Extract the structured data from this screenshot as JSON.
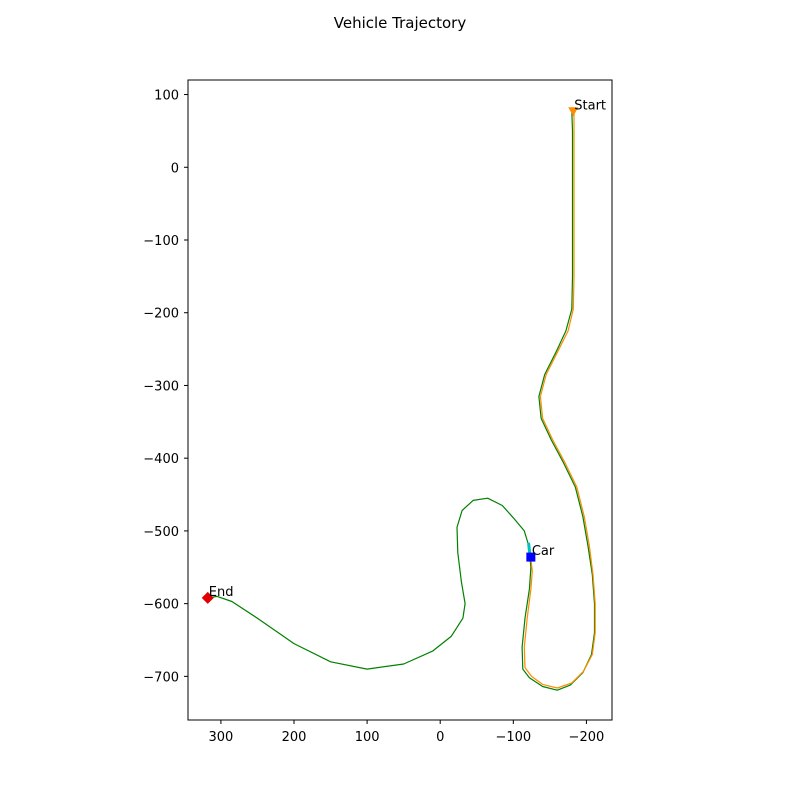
{
  "chart_data": {
    "type": "line",
    "title": "Vehicle Trajectory",
    "xlabel": "",
    "ylabel": "",
    "xlim": [
      345,
      -235
    ],
    "ylim": [
      -760,
      120
    ],
    "x_inverted": true,
    "grid": false,
    "xticks": [
      300,
      200,
      100,
      0,
      -100,
      -200
    ],
    "xtick_labels": [
      "300",
      "200",
      "100",
      "0",
      "−100",
      "−200"
    ],
    "yticks": [
      100,
      0,
      -100,
      -200,
      -300,
      -400,
      -500,
      -600,
      -700
    ],
    "ytick_labels": [
      "100",
      "0",
      "−100",
      "−200",
      "−300",
      "−400",
      "−500",
      "−600",
      "−700"
    ],
    "series": [
      {
        "color": "#008000",
        "points": [
          [
            -180,
            78
          ],
          [
            -181,
            50
          ],
          [
            -181,
            0
          ],
          [
            -181,
            -50
          ],
          [
            -181,
            -100
          ],
          [
            -181,
            -150
          ],
          [
            -180,
            -195
          ],
          [
            -172,
            -225
          ],
          [
            -158,
            -255
          ],
          [
            -143,
            -285
          ],
          [
            -135,
            -315
          ],
          [
            -138,
            -345
          ],
          [
            -152,
            -375
          ],
          [
            -168,
            -405
          ],
          [
            -185,
            -440
          ],
          [
            -195,
            -480
          ],
          [
            -202,
            -520
          ],
          [
            -208,
            -560
          ],
          [
            -211,
            -600
          ],
          [
            -211,
            -640
          ],
          [
            -207,
            -670
          ],
          [
            -195,
            -695
          ],
          [
            -178,
            -712
          ],
          [
            -160,
            -719
          ],
          [
            -140,
            -714
          ],
          [
            -122,
            -702
          ],
          [
            -113,
            -690
          ],
          [
            -112,
            -660
          ],
          [
            -116,
            -620
          ],
          [
            -122,
            -580
          ],
          [
            -124,
            -550
          ],
          [
            -121,
            -520
          ],
          [
            -115,
            -500
          ],
          [
            -100,
            -482
          ],
          [
            -85,
            -465
          ],
          [
            -65,
            -455
          ],
          [
            -45,
            -458
          ],
          [
            -30,
            -472
          ],
          [
            -23,
            -495
          ],
          [
            -24,
            -530
          ],
          [
            -29,
            -570
          ],
          [
            -34,
            -600
          ],
          [
            -31,
            -620
          ],
          [
            -15,
            -645
          ],
          [
            10,
            -665
          ],
          [
            50,
            -683
          ],
          [
            100,
            -690
          ],
          [
            150,
            -680
          ],
          [
            200,
            -655
          ],
          [
            250,
            -620
          ],
          [
            285,
            -597
          ],
          [
            305,
            -590
          ],
          [
            318,
            -592
          ]
        ]
      },
      {
        "color": "#ff8c00",
        "points": [
          [
            -183,
            78
          ],
          [
            -183,
            50
          ],
          [
            -183,
            0
          ],
          [
            -183,
            -50
          ],
          [
            -183,
            -100
          ],
          [
            -183,
            -150
          ],
          [
            -182,
            -195
          ],
          [
            -175,
            -225
          ],
          [
            -160,
            -255
          ],
          [
            -145,
            -285
          ],
          [
            -137,
            -315
          ],
          [
            -140,
            -345
          ],
          [
            -154,
            -375
          ],
          [
            -170,
            -405
          ],
          [
            -187,
            -440
          ],
          [
            -197,
            -480
          ],
          [
            -204,
            -520
          ],
          [
            -209,
            -560
          ],
          [
            -212,
            -600
          ],
          [
            -212,
            -640
          ],
          [
            -208,
            -670
          ],
          [
            -196,
            -693
          ],
          [
            -180,
            -709
          ],
          [
            -160,
            -716
          ],
          [
            -140,
            -711
          ],
          [
            -125,
            -700
          ],
          [
            -116,
            -688
          ],
          [
            -115,
            -660
          ],
          [
            -119,
            -620
          ],
          [
            -124,
            -580
          ],
          [
            -126,
            -555
          ],
          [
            -123,
            -530
          ],
          [
            -121,
            -520
          ]
        ]
      },
      {
        "color": "#00bfbf",
        "points": [
          [
            -123,
            -536
          ],
          [
            -121,
            -518
          ]
        ]
      }
    ],
    "markers": [
      {
        "label": "Start",
        "x": -182,
        "y": 77,
        "shape": "triangle-down",
        "color": "#ff8c00"
      },
      {
        "label": "Car",
        "x": -124,
        "y": -536,
        "shape": "square",
        "color": "#0000ff"
      },
      {
        "label": "End",
        "x": 318,
        "y": -592,
        "shape": "diamond",
        "color": "#e00000"
      }
    ]
  }
}
